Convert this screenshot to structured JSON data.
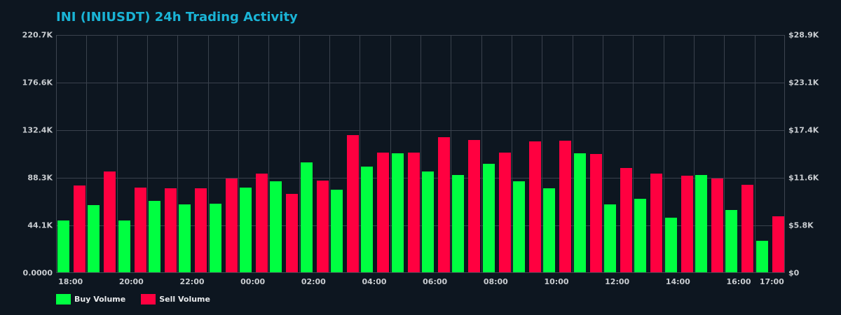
{
  "chart_data": {
    "type": "bar",
    "title": "INI (INIUSDT) 24h Trading Activity",
    "xlabel": "",
    "ylabel": "",
    "categories": [
      "18:00",
      "19:00",
      "20:00",
      "21:00",
      "22:00",
      "23:00",
      "00:00",
      "01:00",
      "02:00",
      "03:00",
      "04:00",
      "05:00",
      "06:00",
      "07:00",
      "08:00",
      "09:00",
      "10:00",
      "11:00",
      "12:00",
      "13:00",
      "14:00",
      "15:00",
      "16:00",
      "17:00"
    ],
    "series": [
      {
        "name": "Buy Volume",
        "color": "#00ff41",
        "values": [
          48.0,
          62.3,
          48.0,
          66.2,
          63.0,
          63.6,
          78.5,
          84.4,
          101.9,
          76.6,
          98.0,
          110.4,
          93.5,
          90.2,
          100.6,
          84.4,
          77.9,
          110.4,
          63.0,
          68.2,
          50.6,
          90.2,
          57.8,
          29.2
        ]
      },
      {
        "name": "Sell Volume",
        "color": "#ff0040",
        "values": [
          80.5,
          93.5,
          78.5,
          77.9,
          77.9,
          87.0,
          91.5,
          72.7,
          85.0,
          127.2,
          111.0,
          111.0,
          125.3,
          122.7,
          111.0,
          121.4,
          122.0,
          109.7,
          96.7,
          91.5,
          89.6,
          87.0,
          81.1,
          51.9
        ]
      }
    ],
    "value_units": "K (volume, left axis)",
    "ylim": [
      0,
      220.7
    ],
    "y_ticks_left": [
      "0.0000",
      "44.1K",
      "88.3K",
      "132.4K",
      "176.6K",
      "220.7K"
    ],
    "y_ticks_right": [
      "$0",
      "$5.8K",
      "$11.6K",
      "$17.4K",
      "$23.1K",
      "$28.9K"
    ],
    "x_tick_labels": [
      "18:00",
      "20:00",
      "22:00",
      "00:00",
      "02:00",
      "04:00",
      "06:00",
      "08:00",
      "10:00",
      "12:00",
      "14:00",
      "16:00",
      "17:00"
    ],
    "grid": true,
    "legend_position": "bottom-left"
  },
  "header": {
    "title": "INI (INIUSDT) 24h Trading Activity"
  },
  "legend": [
    {
      "label": "Buy Volume",
      "color": "#00ff41"
    },
    {
      "label": "Sell Volume",
      "color": "#ff0040"
    }
  ]
}
